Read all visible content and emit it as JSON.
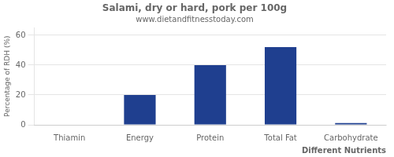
{
  "chart_data": {
    "type": "bar",
    "title": "Salami, dry or hard, pork per 100g",
    "subtitle": "www.dietandfitnesstoday.com",
    "xlabel": "Different Nutrients",
    "ylabel": "Percentage of RDH (%)",
    "categories": [
      "Thiamin",
      "Energy",
      "Protein",
      "Total Fat",
      "Carbohydrate"
    ],
    "values": [
      0.3,
      20,
      40,
      52,
      1.2
    ],
    "color": "#1f3f8f",
    "ylim": [
      0,
      65
    ],
    "yticks": [
      0,
      20,
      40,
      60
    ],
    "grid": true
  }
}
